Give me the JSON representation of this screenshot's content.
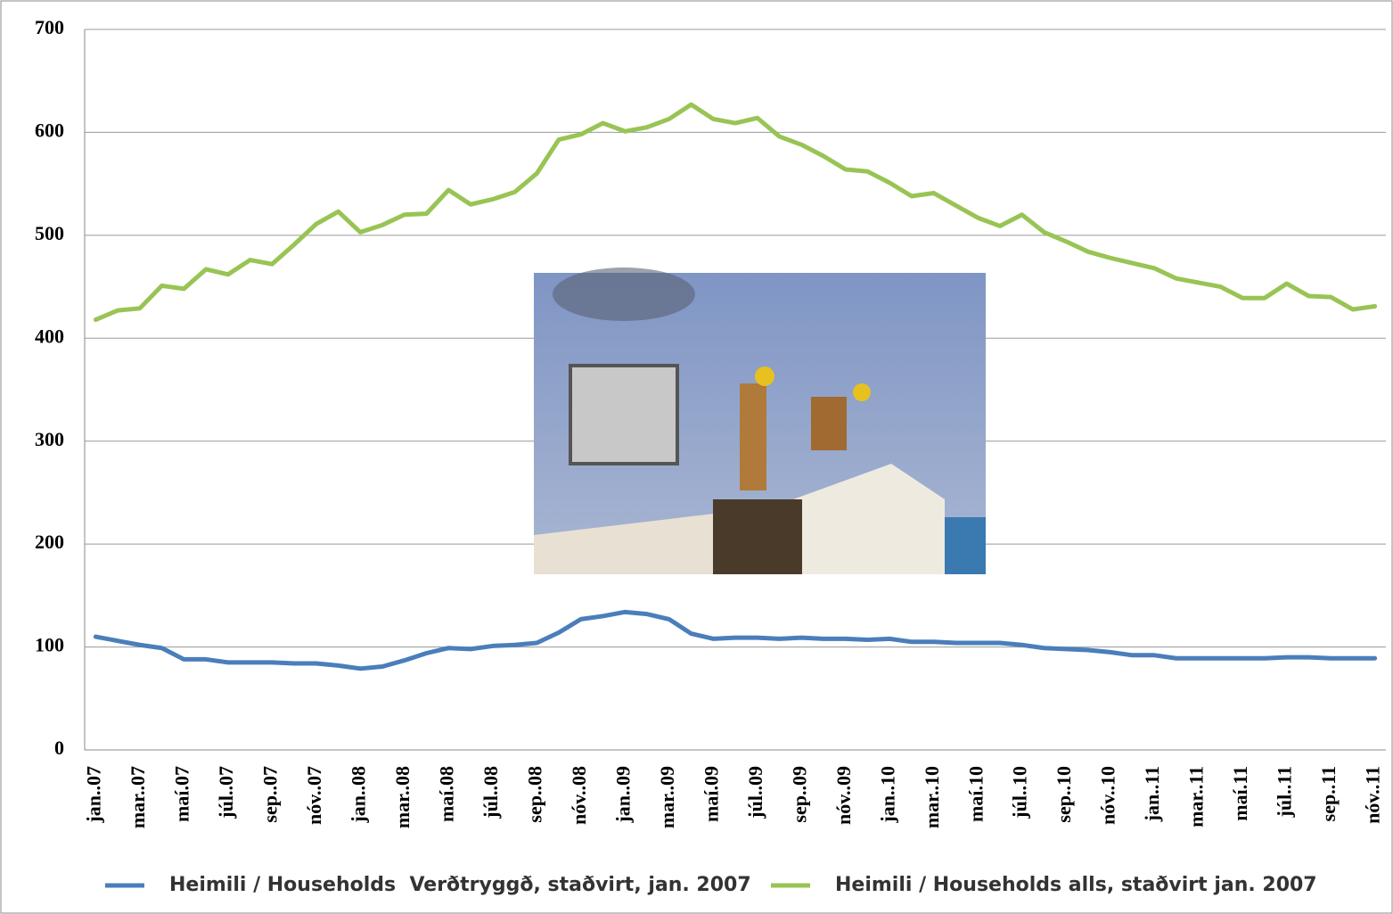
{
  "chart_data": {
    "type": "line",
    "categories": [
      "jan..07",
      null,
      "mar..07",
      null,
      "maí.07",
      null,
      "júl..07",
      null,
      "sep..07",
      null,
      "nóv..07",
      null,
      "jan..08",
      null,
      "mar..08",
      null,
      "maí.08",
      null,
      "júl..08",
      null,
      "sep..08",
      null,
      "nóv..08",
      null,
      "jan..09",
      null,
      "mar..09",
      null,
      "maí.09",
      null,
      "júl..09",
      null,
      "sep..09",
      null,
      "nóv..09",
      null,
      "jan..10",
      null,
      "mar..10",
      null,
      "maí.10",
      null,
      "júl..10",
      null,
      "sep..10",
      null,
      "nóv..10",
      null,
      "jan..11",
      null,
      "mar..11",
      null,
      "maí.11",
      null,
      "júl..11",
      null,
      "sep..11",
      null,
      "nóv..11"
    ],
    "series": [
      {
        "name": "Heimili / Households  Verðtryggð, staðvirt, jan. 2007",
        "color": "#4a7ebb",
        "values": [
          110,
          106,
          102,
          99,
          88,
          88,
          85,
          85,
          85,
          84,
          84,
          82,
          79,
          81,
          87,
          94,
          99,
          98,
          101,
          102,
          104,
          114,
          127,
          130,
          134,
          132,
          127,
          113,
          108,
          109,
          109,
          108,
          109,
          108,
          108,
          107,
          108,
          105,
          105,
          104,
          104,
          104,
          102,
          99,
          98,
          97,
          95,
          92,
          92,
          89,
          89,
          89,
          89,
          89,
          90,
          90,
          89,
          89,
          89
        ]
      },
      {
        "name": "Heimili / Households alls, staðvirt jan. 2007",
        "color": "#98c454",
        "values": [
          418,
          427,
          429,
          451,
          448,
          467,
          462,
          476,
          472,
          491,
          511,
          523,
          503,
          510,
          520,
          521,
          544,
          530,
          535,
          542,
          560,
          593,
          598,
          609,
          601,
          605,
          613,
          627,
          613,
          609,
          614,
          596,
          588,
          577,
          564,
          562,
          551,
          538,
          541,
          529,
          517,
          509,
          520,
          503,
          494,
          484,
          478,
          473,
          468,
          458,
          454,
          450,
          439,
          439,
          453,
          441,
          440,
          428,
          431
        ]
      }
    ],
    "ylim": [
      0,
      700
    ],
    "yticks": [
      0,
      100,
      200,
      300,
      400,
      500,
      600,
      700
    ],
    "grid": true
  }
}
